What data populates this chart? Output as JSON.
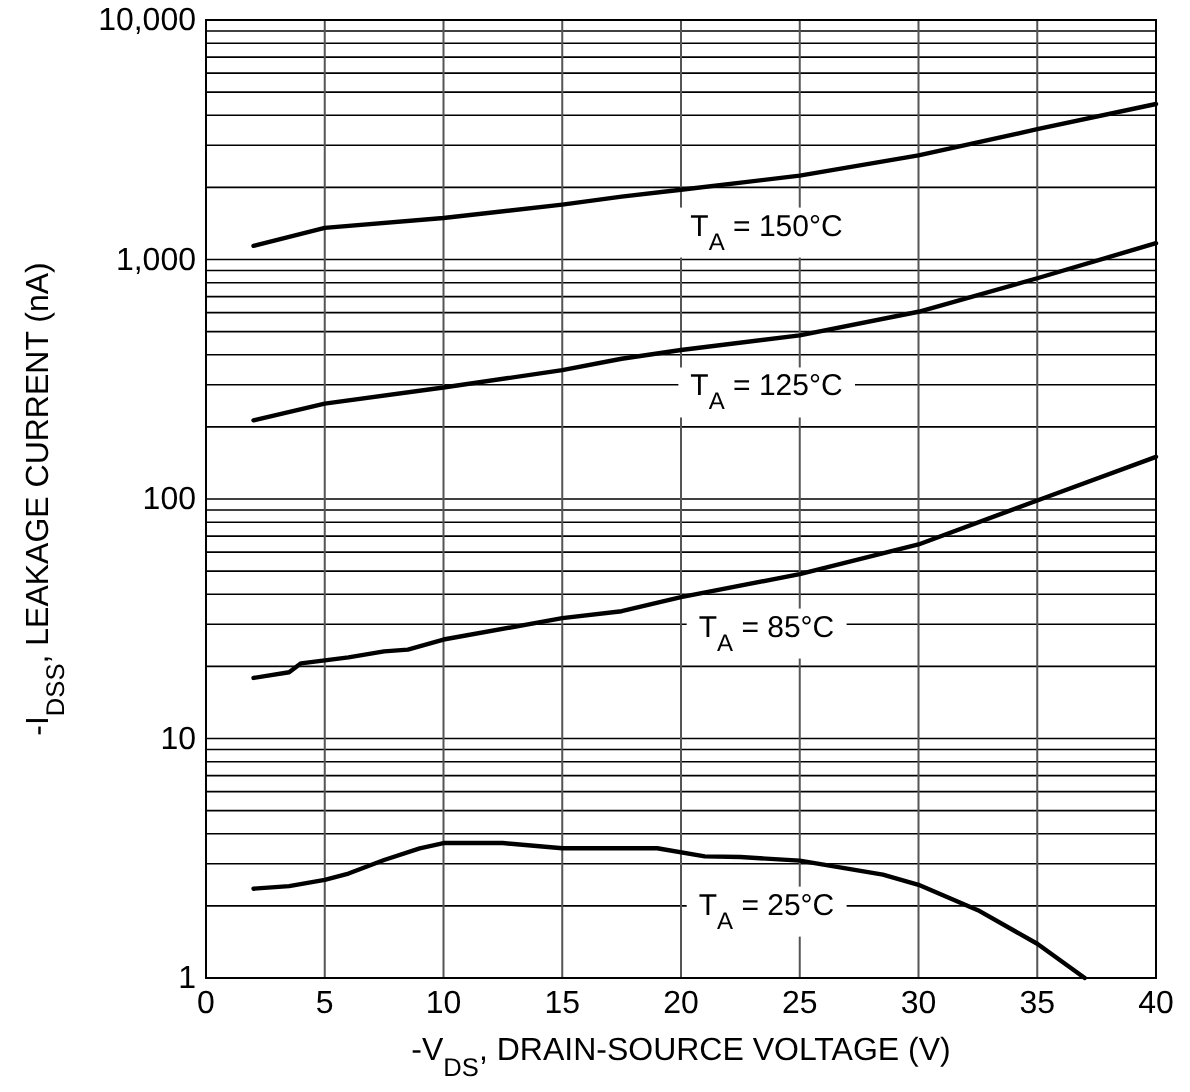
{
  "chart_data": {
    "type": "line",
    "xlabel": "-V$_{DS}$, DRAIN-SOURCE VOLTAGE (V)",
    "ylabel": "-I$_{DSS}$, LEAKAGE CURRENT (nA)",
    "log": "y",
    "grid": true,
    "line_style": "solid",
    "marker": "none",
    "xlim": [
      0,
      40
    ],
    "xticks": [
      0,
      5,
      10,
      15,
      20,
      25,
      30,
      35,
      40
    ],
    "ylim": [
      1,
      10000
    ],
    "yticks": [
      1,
      10,
      100,
      {
        "value": 1000,
        "label": "1,000"
      },
      {
        "value": 10000,
        "label": "10,000"
      }
    ],
    "series": [
      {
        "name": "T$_{A}$ = 150°C",
        "color": "#000000",
        "x": [
          2,
          5,
          10,
          15,
          17.5,
          20,
          25,
          30,
          35,
          40
        ],
        "values": [
          1140,
          1355,
          1490,
          1695,
          1830,
          1955,
          2240,
          2720,
          3500,
          4460
        ]
      },
      {
        "name": "T$_{A}$ = 125°C",
        "color": "#000000",
        "x": [
          2,
          5,
          10,
          15,
          17.5,
          20,
          25,
          30,
          35,
          40
        ],
        "values": [
          213,
          250,
          292,
          345,
          385,
          419,
          482,
          605,
          835,
          1170
        ]
      },
      {
        "name": "T$_{A}$ = 85°C",
        "color": "#000000",
        "x": [
          2,
          3.5,
          4,
          6,
          7.5,
          8.5,
          10,
          15,
          17.5,
          20,
          25,
          30,
          35,
          40
        ],
        "values": [
          17.9,
          18.9,
          20.6,
          21.8,
          23.1,
          23.5,
          25.9,
          31.8,
          34,
          38.9,
          48.6,
          64.6,
          98.6,
          150
        ]
      },
      {
        "name": "T$_{A}$ = 25°C",
        "color": "#000000",
        "x": [
          2,
          3.5,
          5,
          6,
          7.5,
          9,
          10,
          12.5,
          15,
          19,
          21,
          22.5,
          25,
          28.5,
          30,
          32.5,
          35,
          37
        ],
        "values": [
          2.36,
          2.42,
          2.57,
          2.73,
          3.11,
          3.48,
          3.66,
          3.66,
          3.48,
          3.48,
          3.22,
          3.2,
          3.09,
          2.7,
          2.45,
          1.92,
          1.39,
          1.0
        ]
      }
    ]
  }
}
